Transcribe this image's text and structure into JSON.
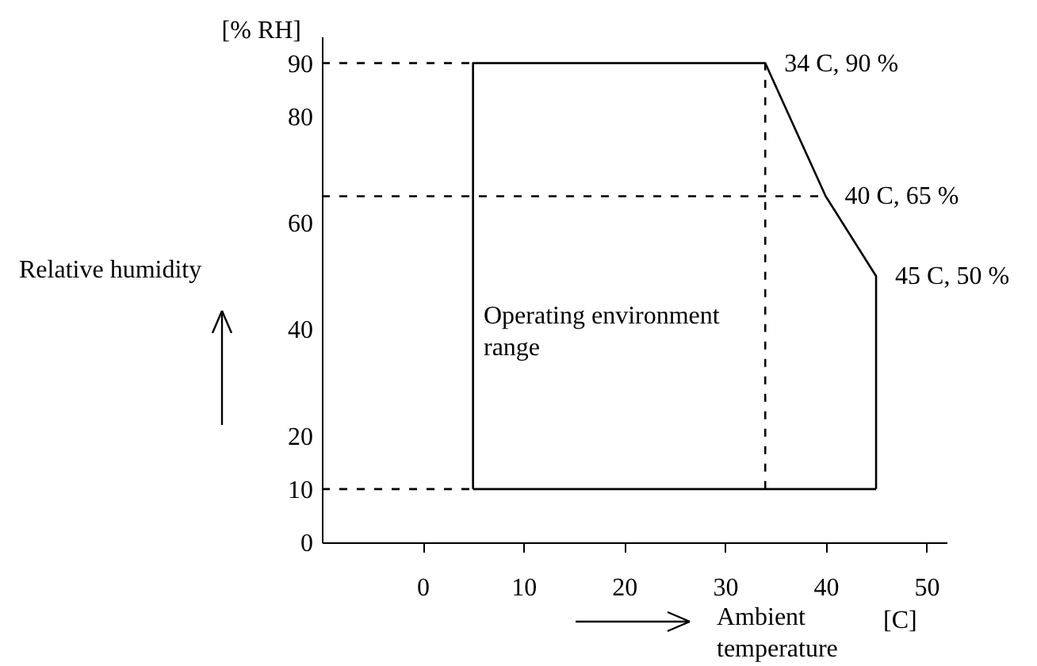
{
  "chart_data": {
    "type": "line",
    "xlabel": "Ambient temperature",
    "ylabel": "Relative humidity",
    "xlim": [
      -10,
      52
    ],
    "ylim": [
      0,
      95
    ],
    "xticks": [
      0,
      10,
      20,
      30,
      40,
      50
    ],
    "yticks": [
      0,
      10,
      20,
      40,
      60,
      80,
      90
    ],
    "grid": false,
    "marker": "none",
    "series": [
      {
        "color": "#000000",
        "line_style": "solid",
        "x": [
          5,
          5,
          34,
          40,
          45,
          45
        ],
        "values": [
          10,
          90,
          90,
          65,
          50,
          10
        ]
      },
      {
        "color": "#000000",
        "line_style": "solid",
        "x": [
          5,
          45
        ],
        "values": [
          10,
          10
        ]
      },
      {
        "color": "#000000",
        "line_style": "dashed",
        "x": [
          -10,
          5
        ],
        "values": [
          90,
          90
        ]
      },
      {
        "color": "#000000",
        "line_style": "dashed",
        "x": [
          -10,
          40
        ],
        "values": [
          65,
          65
        ]
      },
      {
        "color": "#000000",
        "line_style": "dashed",
        "x": [
          -10,
          5
        ],
        "values": [
          10,
          10
        ]
      },
      {
        "color": "#000000",
        "line_style": "dashed",
        "x": [
          34,
          34
        ],
        "values": [
          10,
          90
        ]
      }
    ],
    "annotations": [
      "[% RH]",
      "[C]",
      "Operating environment range",
      {
        "text": "34 C, 90 %",
        "x": 34,
        "y": 90
      },
      {
        "text": "40 C, 65 %",
        "x": 40,
        "y": 65
      },
      {
        "text": "45 C, 50 %",
        "x": 45,
        "y": 50
      }
    ]
  }
}
